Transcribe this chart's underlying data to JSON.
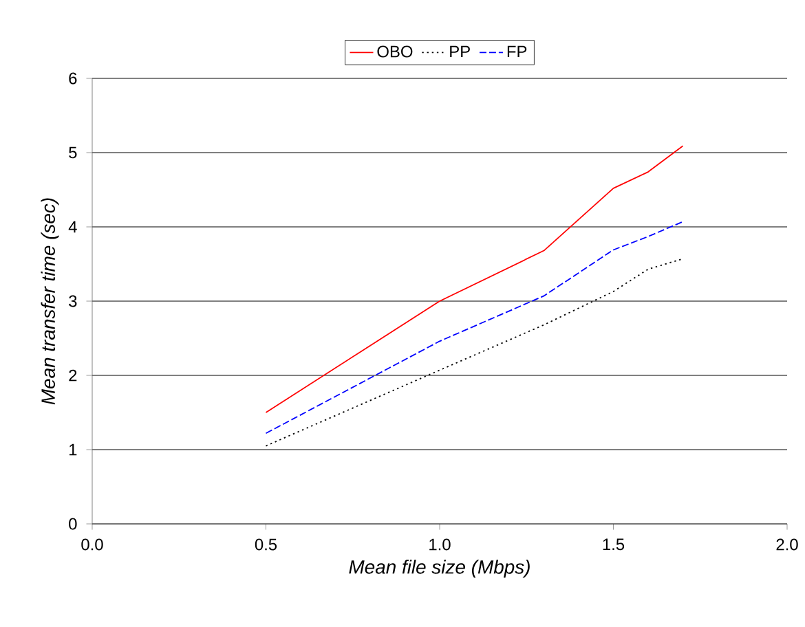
{
  "chart_data": {
    "type": "line",
    "xlabel": "Mean file size (Mbps)",
    "ylabel": "Mean transfer time (sec)",
    "xlim": [
      0,
      2
    ],
    "ylim": [
      0,
      6
    ],
    "xticks": [
      {
        "value": 0,
        "label": "0.0"
      },
      {
        "value": 0.5,
        "label": "0.5"
      },
      {
        "value": 1,
        "label": "1.0"
      },
      {
        "value": 1.5,
        "label": "1.5"
      },
      {
        "value": 2,
        "label": "2.0"
      }
    ],
    "yticks": [
      0,
      1,
      2,
      3,
      4,
      5,
      6
    ],
    "grid": "y",
    "legend": "top",
    "marker": "none",
    "x": [
      0.5,
      1.0,
      1.3,
      1.5,
      1.6,
      1.7
    ],
    "series": [
      {
        "name": "OBO",
        "color": "#ff0000",
        "line_style": "solid",
        "values": [
          1.5,
          3.0,
          3.68,
          4.52,
          4.74,
          5.09
        ]
      },
      {
        "name": "PP",
        "color": "#000000",
        "line_style": "dotted",
        "values": [
          1.05,
          2.07,
          2.68,
          3.13,
          3.43,
          3.57
        ]
      },
      {
        "name": "FP",
        "color": "#0000ff",
        "line_style": "dashed",
        "values": [
          1.22,
          2.46,
          3.07,
          3.69,
          3.87,
          4.07
        ]
      }
    ]
  }
}
